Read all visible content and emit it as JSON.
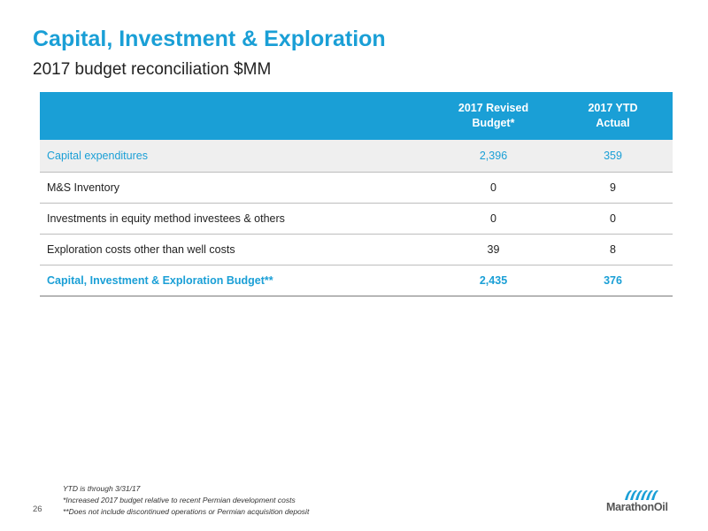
{
  "header": {
    "title": "Capital, Investment & Exploration",
    "subtitle": "2017 budget reconciliation $MM"
  },
  "table": {
    "col1_header_line1": "2017 Revised",
    "col1_header_line2": "Budget*",
    "col2_header_line1": "2017 YTD",
    "col2_header_line2": "Actual",
    "rows": [
      {
        "label": "Capital expenditures",
        "budget": "2,396",
        "actual": "359"
      },
      {
        "label": "M&S Inventory",
        "budget": "0",
        "actual": "9"
      },
      {
        "label": "Investments in equity method investees & others",
        "budget": "0",
        "actual": "0"
      },
      {
        "label": "Exploration costs other than well costs",
        "budget": "39",
        "actual": "8"
      },
      {
        "label": "Capital, Investment & Exploration Budget**",
        "budget": "2,435",
        "actual": "376"
      }
    ]
  },
  "footer": {
    "page_number": "26",
    "footnotes": [
      "YTD is through 3/31/17",
      "*Increased 2017 budget relative to recent Permian development costs",
      "**Does not include discontinued operations or Permian acquisition deposit"
    ],
    "logo_text": "MarathonOil",
    "brand_color": "#1a9fd6"
  }
}
